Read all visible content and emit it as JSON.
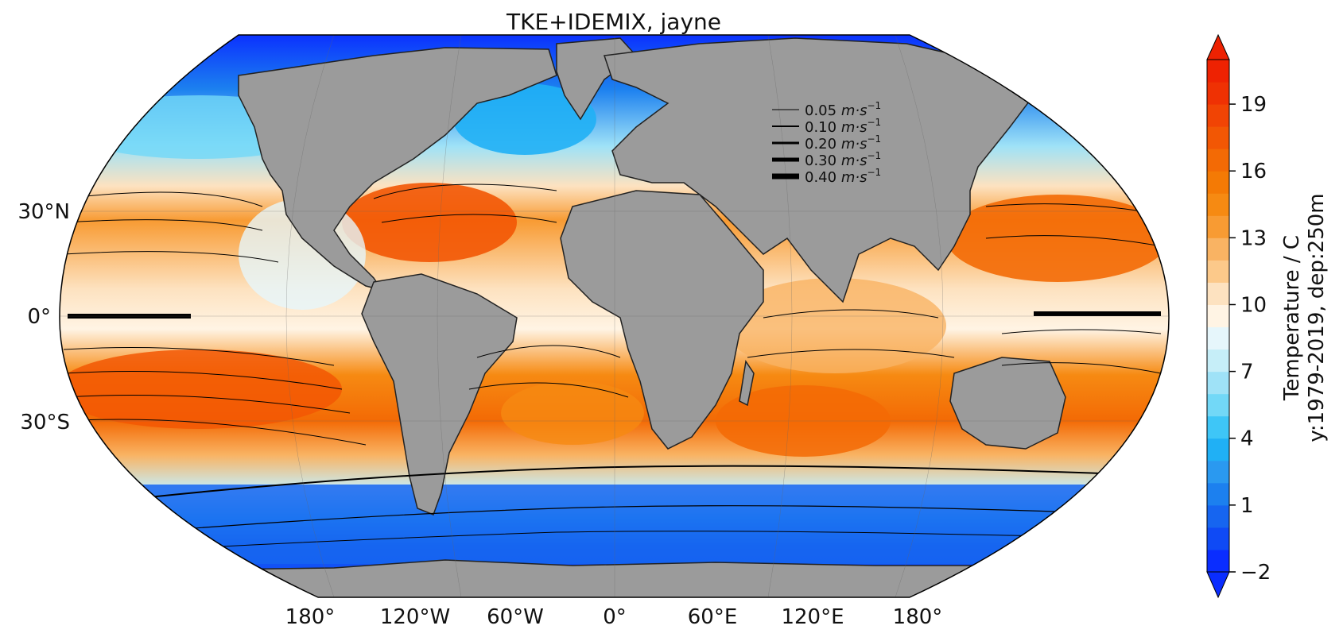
{
  "title": "TKE+IDEMIX, jayne",
  "lat_labels": [
    "30°N",
    "0°",
    "30°S"
  ],
  "lon_labels": [
    "180°",
    "120°W",
    "60°W",
    "0°",
    "60°E",
    "120°E",
    "180°"
  ],
  "legend": {
    "items": [
      {
        "value": "0.05",
        "unit": "m·s",
        "exp": "−1"
      },
      {
        "value": "0.10",
        "unit": "m·s",
        "exp": "−1"
      },
      {
        "value": "0.20",
        "unit": "m·s",
        "exp": "−1"
      },
      {
        "value": "0.30",
        "unit": "m·s",
        "exp": "−1"
      },
      {
        "value": "0.40",
        "unit": "m·s",
        "exp": "−1"
      }
    ]
  },
  "colorbar": {
    "label_line1": "Temperature / C",
    "label_line2": "y:1979-2019, dep:250m",
    "ticks": [
      "−2",
      "1",
      "4",
      "7",
      "10",
      "13",
      "16",
      "19"
    ],
    "tick_values": [
      -2,
      1,
      4,
      7,
      10,
      13,
      16,
      19
    ],
    "min": -2,
    "max": 21,
    "extend": "both",
    "colors": [
      "#0a2dff",
      "#0f4af5",
      "#1665f0",
      "#1c80ef",
      "#2a99f0",
      "#20b0f5",
      "#3ec6f7",
      "#72d8f7",
      "#9fe2f7",
      "#c6eef8",
      "#e6f6fb",
      "#fff4e4",
      "#fde2c0",
      "#fcc98a",
      "#f9b363",
      "#f89b33",
      "#f68a12",
      "#f47a05",
      "#f36a05",
      "#f25704",
      "#f14404",
      "#ef3103",
      "#ee2202"
    ]
  },
  "colors": {
    "land": "#9b9b9b",
    "shelf": "#cfcfcf",
    "streamline": "#000000"
  }
}
